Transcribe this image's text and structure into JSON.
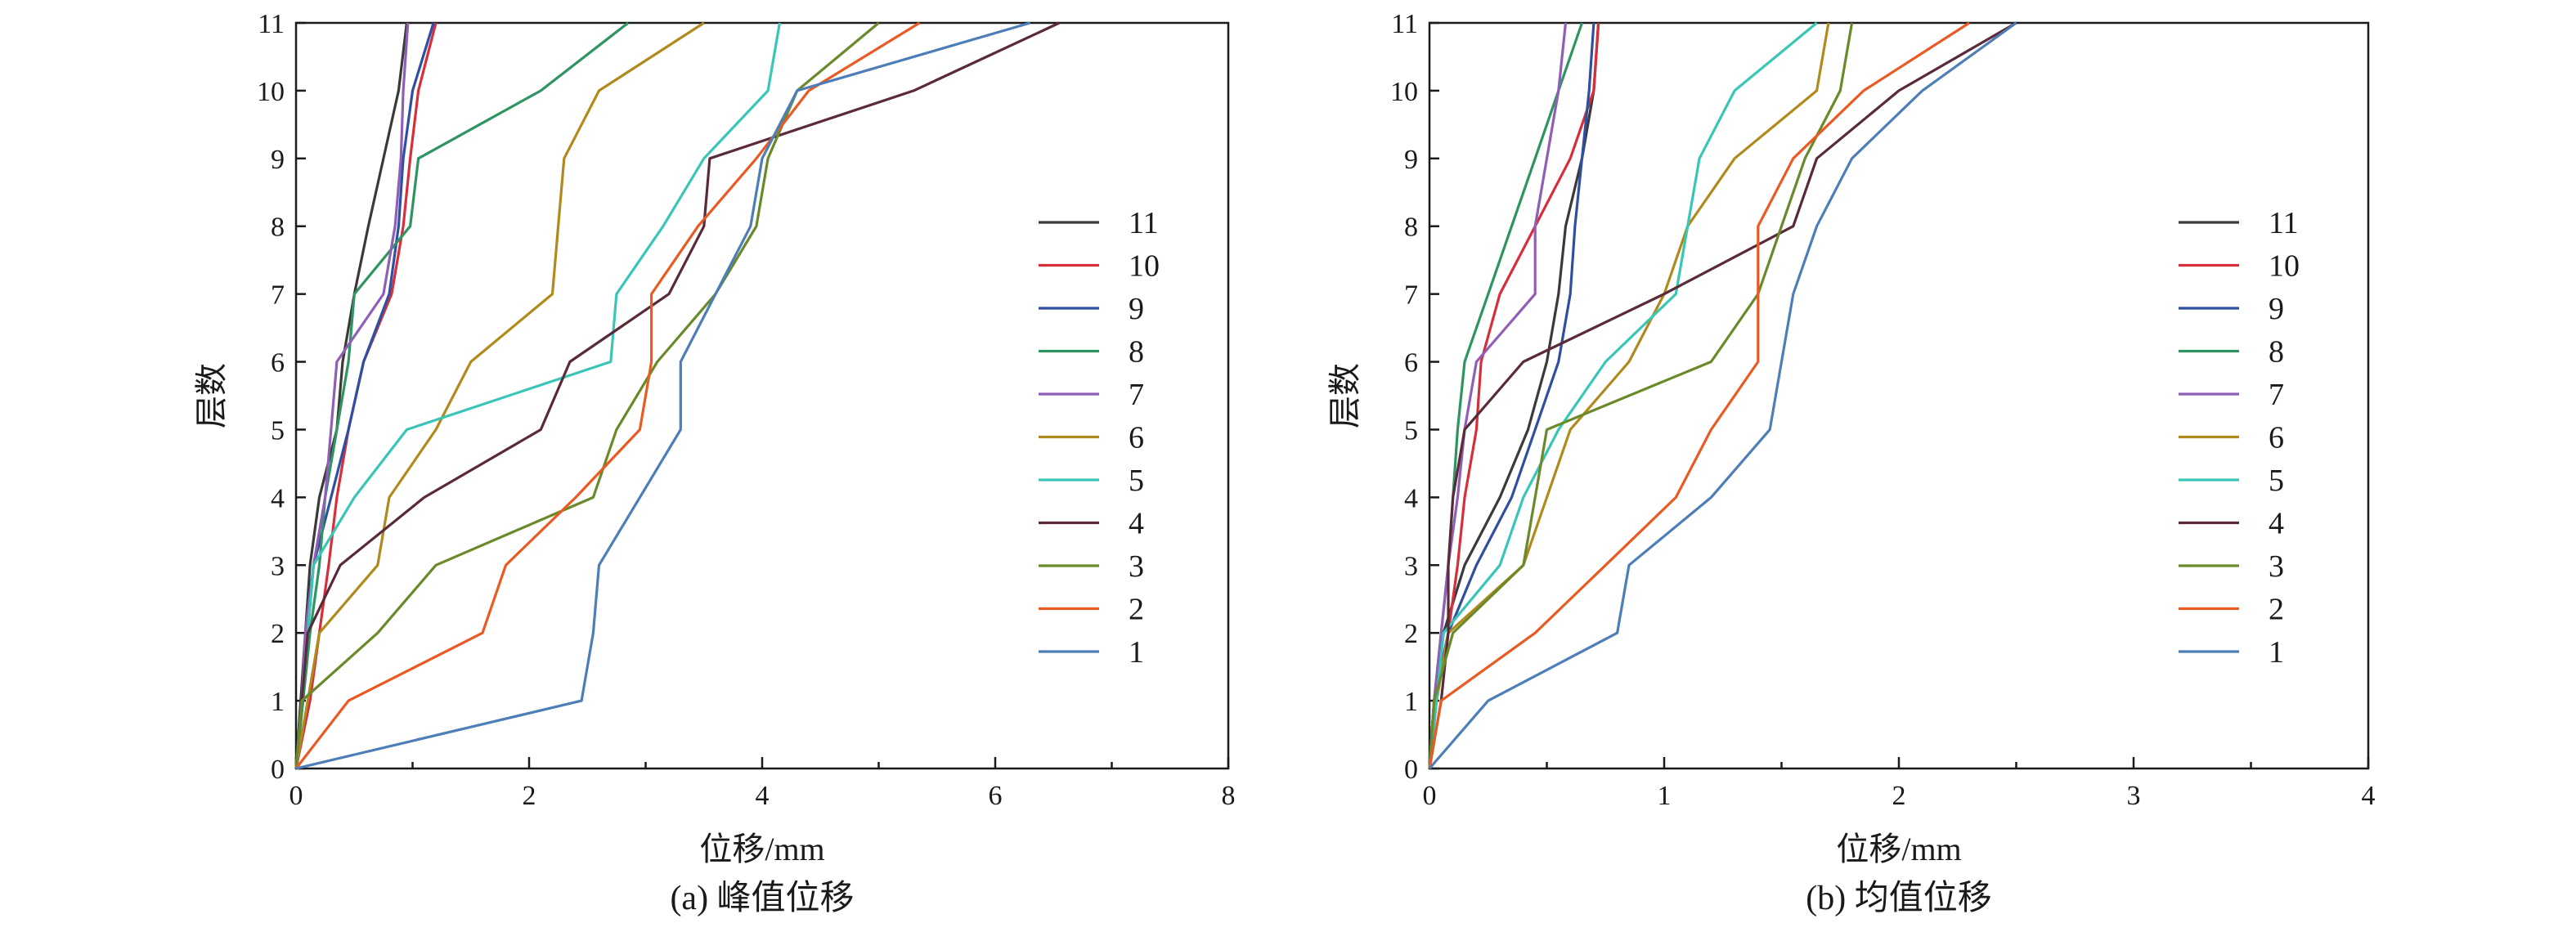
{
  "figure": {
    "panels": [
      {
        "caption": "(a) 峰值位移",
        "xlabel": "位移/mm",
        "ylabel": "层数"
      },
      {
        "caption": "(b) 均值位移",
        "xlabel": "位移/mm",
        "ylabel": "层数"
      }
    ]
  },
  "chart_data": [
    {
      "type": "line",
      "title": "(a) 峰值位移",
      "xlabel": "位移/mm",
      "ylabel": "层数",
      "xlim": [
        0,
        8
      ],
      "ylim": [
        0,
        11
      ],
      "xticks": [
        0,
        2,
        4,
        6,
        8
      ],
      "yticks": [
        0,
        1,
        2,
        3,
        4,
        5,
        6,
        7,
        8,
        9,
        10,
        11
      ],
      "grid": false,
      "legend_position": "right",
      "y": [
        0,
        1,
        2,
        3,
        4,
        5,
        6,
        7,
        8,
        9,
        10,
        11
      ],
      "series": [
        {
          "name": "11",
          "color": "#3a3a3a",
          "x": [
            0,
            0.04,
            0.08,
            0.12,
            0.2,
            0.35,
            0.4,
            0.5,
            0.62,
            0.75,
            0.88,
            0.95
          ]
        },
        {
          "name": "10",
          "color": "#d62f3b",
          "x": [
            0,
            0.12,
            0.2,
            0.28,
            0.35,
            0.45,
            0.58,
            0.82,
            0.92,
            0.98,
            1.05,
            1.2
          ]
        },
        {
          "name": "9",
          "color": "#2f4fa3",
          "x": [
            0,
            0.05,
            0.1,
            0.15,
            0.3,
            0.45,
            0.58,
            0.8,
            0.88,
            0.92,
            1.0,
            1.18
          ]
        },
        {
          "name": "8",
          "color": "#2e9461",
          "x": [
            0,
            0.06,
            0.12,
            0.2,
            0.25,
            0.35,
            0.45,
            0.5,
            0.98,
            1.05,
            2.1,
            2.85
          ]
        },
        {
          "name": "7",
          "color": "#8f5fb8",
          "x": [
            0,
            0.05,
            0.08,
            0.15,
            0.25,
            0.3,
            0.35,
            0.75,
            0.85,
            0.9,
            0.92,
            0.96
          ]
        },
        {
          "name": "6",
          "color": "#b08a1c",
          "x": [
            0,
            0.1,
            0.2,
            0.7,
            0.8,
            1.2,
            1.5,
            2.2,
            2.25,
            2.3,
            2.6,
            3.5
          ]
        },
        {
          "name": "5",
          "color": "#3ac6b6",
          "x": [
            0,
            0.05,
            0.1,
            0.15,
            0.5,
            0.95,
            2.7,
            2.75,
            3.15,
            3.5,
            4.05,
            4.15
          ]
        },
        {
          "name": "4",
          "color": "#5a2a3a",
          "x": [
            0,
            0.05,
            0.1,
            0.38,
            1.1,
            2.1,
            2.35,
            3.2,
            3.5,
            3.55,
            5.3,
            6.55
          ]
        },
        {
          "name": "3",
          "color": "#6a8a2a",
          "x": [
            0,
            0.05,
            0.7,
            1.2,
            2.55,
            2.75,
            3.1,
            3.6,
            3.95,
            4.05,
            4.3,
            5.0
          ]
        },
        {
          "name": "2",
          "color": "#ea5a23",
          "x": [
            0,
            0.45,
            1.6,
            1.8,
            2.4,
            2.95,
            3.05,
            3.05,
            3.45,
            3.95,
            4.4,
            5.35
          ]
        },
        {
          "name": "1",
          "color": "#4d7eb8",
          "x": [
            0,
            2.45,
            2.55,
            2.6,
            2.95,
            3.3,
            3.3,
            3.6,
            3.9,
            4.0,
            4.3,
            6.3
          ]
        }
      ]
    },
    {
      "type": "line",
      "title": "(b) 均值位移",
      "xlabel": "位移/mm",
      "ylabel": "层数",
      "xlim": [
        0,
        4
      ],
      "ylim": [
        0,
        11
      ],
      "xticks": [
        0,
        1,
        2,
        3,
        4
      ],
      "yticks": [
        0,
        1,
        2,
        3,
        4,
        5,
        6,
        7,
        8,
        9,
        10,
        11
      ],
      "grid": false,
      "legend_position": "right",
      "y": [
        0,
        1,
        2,
        3,
        4,
        5,
        6,
        7,
        8,
        9,
        10,
        11
      ],
      "series": [
        {
          "name": "11",
          "color": "#3a3a3a",
          "x": [
            0,
            0.02,
            0.06,
            0.15,
            0.3,
            0.42,
            0.5,
            0.55,
            0.58,
            0.65,
            0.7,
            0.72
          ]
        },
        {
          "name": "10",
          "color": "#d62f3b",
          "x": [
            0,
            0.03,
            0.08,
            0.12,
            0.15,
            0.2,
            0.22,
            0.3,
            0.45,
            0.6,
            0.7,
            0.72
          ]
        },
        {
          "name": "9",
          "color": "#2f4fa3",
          "x": [
            0,
            0.02,
            0.08,
            0.2,
            0.35,
            0.45,
            0.55,
            0.6,
            0.62,
            0.65,
            0.68,
            0.7
          ]
        },
        {
          "name": "8",
          "color": "#2e9461",
          "x": [
            0,
            0.02,
            0.05,
            0.08,
            0.1,
            0.12,
            0.15,
            0.25,
            0.35,
            0.45,
            0.55,
            0.65
          ]
        },
        {
          "name": "7",
          "color": "#8f5fb8",
          "x": [
            0,
            0.02,
            0.05,
            0.08,
            0.12,
            0.15,
            0.2,
            0.45,
            0.45,
            0.5,
            0.55,
            0.58
          ]
        },
        {
          "name": "6",
          "color": "#b08a1c",
          "x": [
            0,
            0.03,
            0.08,
            0.4,
            0.5,
            0.6,
            0.85,
            1.0,
            1.1,
            1.3,
            1.65,
            1.7
          ]
        },
        {
          "name": "5",
          "color": "#3ac6b6",
          "x": [
            0,
            0.03,
            0.06,
            0.3,
            0.4,
            0.55,
            0.75,
            1.05,
            1.1,
            1.15,
            1.3,
            1.65
          ]
        },
        {
          "name": "4",
          "color": "#5a2a3a",
          "x": [
            0,
            0.05,
            0.08,
            0.08,
            0.1,
            0.15,
            0.4,
            1.0,
            1.55,
            1.65,
            2.0,
            2.5
          ]
        },
        {
          "name": "3",
          "color": "#6a8a2a",
          "x": [
            0,
            0.02,
            0.1,
            0.4,
            0.45,
            0.5,
            1.2,
            1.4,
            1.5,
            1.6,
            1.75,
            1.8
          ]
        },
        {
          "name": "2",
          "color": "#ea5a23",
          "x": [
            0,
            0.05,
            0.45,
            0.75,
            1.05,
            1.2,
            1.4,
            1.4,
            1.4,
            1.55,
            1.85,
            2.3
          ]
        },
        {
          "name": "1",
          "color": "#4d7eb8",
          "x": [
            0,
            0.25,
            0.8,
            0.85,
            1.2,
            1.45,
            1.5,
            1.55,
            1.65,
            1.8,
            2.1,
            2.5
          ]
        }
      ]
    }
  ]
}
